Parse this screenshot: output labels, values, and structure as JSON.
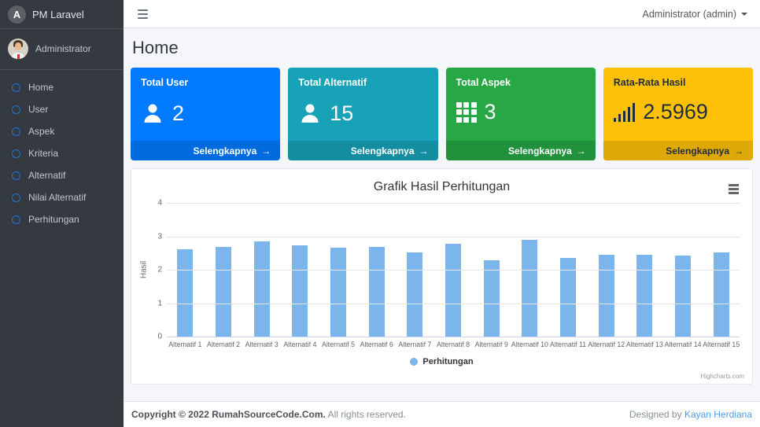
{
  "brand": {
    "title": "PM Laravel",
    "logo_letter": "A"
  },
  "topbar": {
    "user_menu_label": "Administrator (admin)"
  },
  "sidebar": {
    "user_name": "Administrator",
    "items": [
      {
        "label": "Home"
      },
      {
        "label": "User"
      },
      {
        "label": "Aspek"
      },
      {
        "label": "Kriteria"
      },
      {
        "label": "Alternatif"
      },
      {
        "label": "Nilai Alternatif"
      },
      {
        "label": "Perhitungan"
      }
    ]
  },
  "page": {
    "title": "Home"
  },
  "cards": [
    {
      "label": "Total User",
      "value": "2",
      "link_label": "Selengkapnya",
      "icon": "user-icon",
      "color": "#007bff",
      "text_color": "#ffffff"
    },
    {
      "label": "Total Alternatif",
      "value": "15",
      "link_label": "Selengkapnya",
      "icon": "user-icon",
      "color": "#17a2b8",
      "text_color": "#ffffff"
    },
    {
      "label": "Total Aspek",
      "value": "3",
      "link_label": "Selengkapnya",
      "icon": "grid-icon",
      "color": "#28a745",
      "text_color": "#ffffff"
    },
    {
      "label": "Rata-Rata Hasil",
      "value": "2.5969",
      "link_label": "Selengkapnya",
      "icon": "signal-bars-icon",
      "color": "#ffc107",
      "text_color": "#1f2d3d"
    }
  ],
  "chart_data": {
    "type": "bar",
    "title": "Grafik Hasil Perhitungan",
    "categories": [
      "Alternatif 1",
      "Alternatif 2",
      "Alternatif 3",
      "Alternatif 4",
      "Alternatif 5",
      "Alternatif 6",
      "Alternatif 7",
      "Alternatif 8",
      "Alternatif 9",
      "Alternatif 10",
      "Alternatif 11",
      "Alternatif 12",
      "Alternatif 13",
      "Alternatif 14",
      "Alternatif 15"
    ],
    "series": [
      {
        "name": "Perhitungan",
        "values": [
          2.62,
          2.68,
          2.85,
          2.74,
          2.66,
          2.69,
          2.52,
          2.77,
          2.29,
          2.9,
          2.35,
          2.44,
          2.44,
          2.42,
          2.52
        ]
      }
    ],
    "xlabel": "",
    "ylabel": "Hasil",
    "ylim": [
      0,
      4
    ],
    "yticks": [
      0,
      1,
      2,
      3,
      4
    ],
    "grid": true,
    "legend_position": "bottom-center",
    "bar_color": "#7cb5ec",
    "credit": "Highcharts.com"
  },
  "footer": {
    "copyright_strong": "Copyright © 2022 RumahSourceCode.Com.",
    "copyright_rest": "All rights reserved.",
    "designed_by": "Designed by",
    "designer_link": "Kayan Herdiana"
  }
}
